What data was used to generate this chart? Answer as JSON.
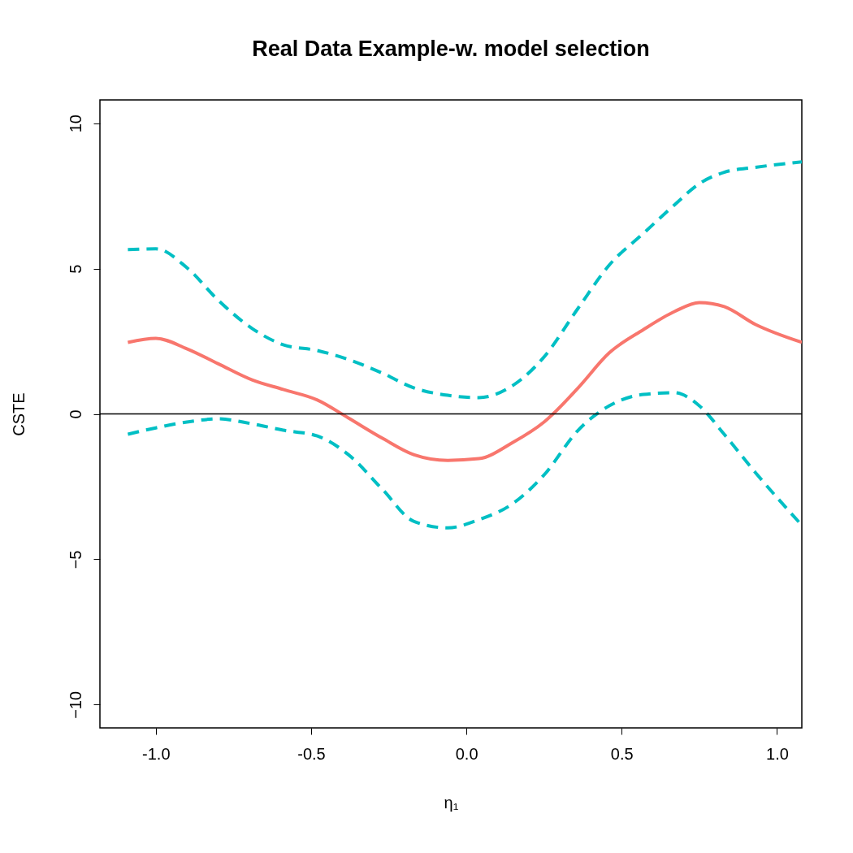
{
  "chart_data": {
    "type": "line",
    "title": "Real Data Example-w. model selection",
    "xlabel": "η₁",
    "ylabel": "CSTE",
    "x": [
      -1.09,
      -1.0,
      -0.9,
      -0.8,
      -0.69,
      -0.59,
      -0.48,
      -0.38,
      -0.27,
      -0.17,
      -0.06,
      0.04,
      0.15,
      0.25,
      0.36,
      0.46,
      0.57,
      0.67,
      0.75,
      0.83,
      0.93,
      1.08
    ],
    "series": [
      {
        "color": "#f8766d",
        "line_style": "solid",
        "values": [
          2.46,
          2.6,
          2.24,
          1.73,
          1.17,
          0.84,
          0.48,
          -0.14,
          -0.84,
          -1.4,
          -1.6,
          -1.54,
          -0.98,
          -0.28,
          0.9,
          2.1,
          2.9,
          3.52,
          3.83,
          3.69,
          3.08,
          2.46
        ]
      },
      {
        "color": "#00bfc4",
        "line_style": "dashed",
        "values": [
          5.65,
          5.68,
          5.03,
          3.92,
          2.94,
          2.38,
          2.18,
          1.87,
          1.4,
          0.9,
          0.64,
          0.56,
          0.98,
          1.96,
          3.64,
          5.12,
          6.21,
          7.19,
          7.92,
          8.31,
          8.48,
          8.67
        ]
      },
      {
        "color": "#00bfc4",
        "line_style": "dashed",
        "values": [
          -0.7,
          -0.48,
          -0.28,
          -0.17,
          -0.34,
          -0.56,
          -0.76,
          -1.4,
          -2.6,
          -3.69,
          -3.92,
          -3.64,
          -3.08,
          -2.1,
          -0.56,
          0.28,
          0.67,
          0.73,
          0.28,
          -0.7,
          -2.01,
          -3.83
        ]
      }
    ],
    "xlim": [
      -1.18,
      1.08
    ],
    "ylim": [
      -10.8,
      10.8
    ],
    "xticks": [
      {
        "value": -1,
        "label": "-1.0"
      },
      {
        "value": -0.5,
        "label": "-0.5"
      },
      {
        "value": 0,
        "label": "0.0"
      },
      {
        "value": 0.5,
        "label": "0.5"
      },
      {
        "value": 1,
        "label": "1.0"
      }
    ],
    "yticks": [
      -10,
      -5,
      0,
      5,
      10
    ],
    "ref_lines": [
      {
        "axis": "y",
        "value": 0,
        "color": "#000000"
      }
    ],
    "grid": false
  }
}
